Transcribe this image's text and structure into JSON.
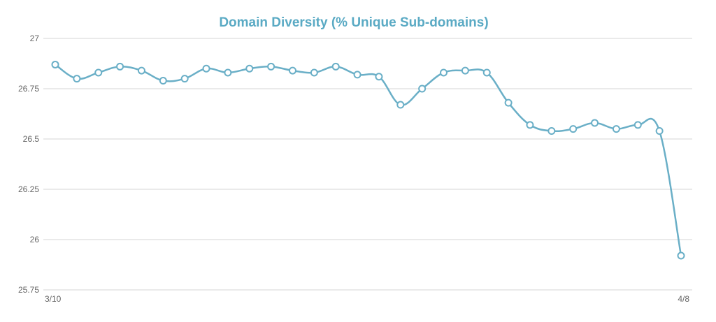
{
  "chart_data": {
    "type": "line",
    "title": "Domain Diversity (% Unique Sub-domains)",
    "xlabel": "",
    "ylabel": "",
    "x_tick_labels": [
      "3/10",
      "4/8"
    ],
    "y_ticks": [
      25.75,
      26,
      26.25,
      26.5,
      26.75,
      27
    ],
    "y_tick_labels": [
      "25.75",
      "26",
      "26.25",
      "26.5",
      "26.75",
      "27"
    ],
    "ylim": [
      25.75,
      27
    ],
    "grid": true,
    "legend": "none",
    "series": [
      {
        "values": [
          26.87,
          26.8,
          26.83,
          26.86,
          26.84,
          26.79,
          26.8,
          26.85,
          26.83,
          26.85,
          26.86,
          26.84,
          26.83,
          26.86,
          26.82,
          26.81,
          26.67,
          26.75,
          26.83,
          26.84,
          26.83,
          26.68,
          26.57,
          26.54,
          26.55,
          26.58,
          26.55,
          26.57,
          26.54,
          25.92
        ]
      }
    ]
  },
  "colors": {
    "series": "#6aafc7",
    "title": "#5aaac4",
    "grid": "#d5d5d5",
    "tick_text": "#666666"
  }
}
